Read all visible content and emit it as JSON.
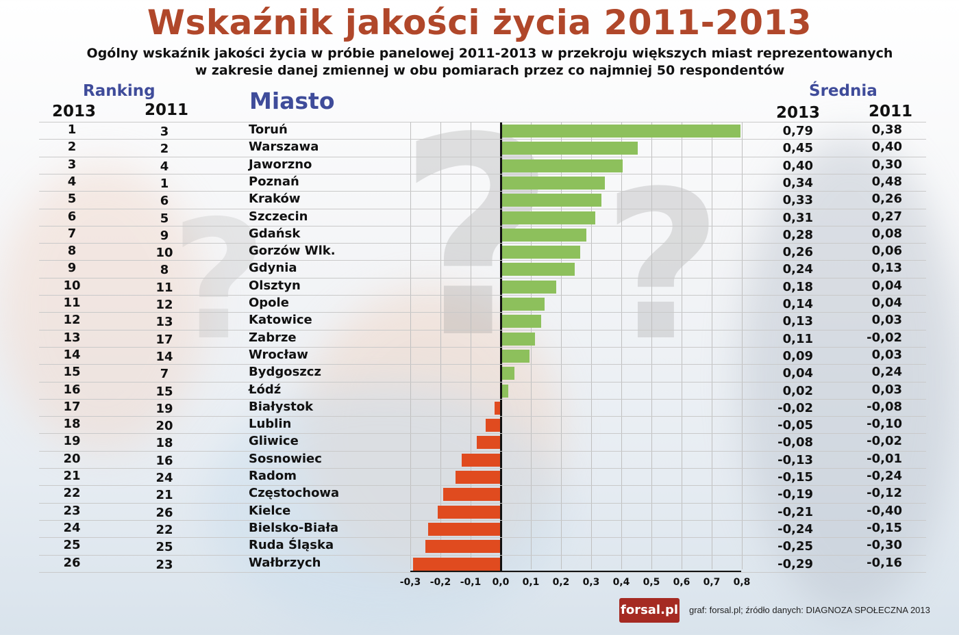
{
  "title": "Wskaźnik jakości życia 2011-2013",
  "subtitle_line1": "Ogólny wskaźnik jakości życia w próbie panelowej 2011-2013 w przekroju większych miast reprezentowanych",
  "subtitle_line2": "w zakresie danej zmiennej w obu pomiarach przez co najmniej 50 respondentów",
  "headers": {
    "ranking": "Ranking",
    "rank_2013": "2013",
    "rank_2011": "2011",
    "city": "Miasto",
    "average": "Średnia",
    "avg_2013": "2013",
    "avg_2011": "2011"
  },
  "colors": {
    "title": "#b0472a",
    "header_blue": "#3f4c9a",
    "positive_bar": "#8dc05c",
    "negative_bar": "#e04b1f",
    "logo_bg": "#a52a22"
  },
  "rows": [
    {
      "rank2013": "1",
      "rank2011": "3",
      "city": "Toruń",
      "avg2013": "0,79",
      "avg2011": "0,38"
    },
    {
      "rank2013": "2",
      "rank2011": "2",
      "city": "Warszawa",
      "avg2013": "0,45",
      "avg2011": "0,40"
    },
    {
      "rank2013": "3",
      "rank2011": "4",
      "city": "Jaworzno",
      "avg2013": "0,40",
      "avg2011": "0,30"
    },
    {
      "rank2013": "4",
      "rank2011": "1",
      "city": "Poznań",
      "avg2013": "0,34",
      "avg2011": "0,48"
    },
    {
      "rank2013": "5",
      "rank2011": "6",
      "city": "Kraków",
      "avg2013": "0,33",
      "avg2011": "0,26"
    },
    {
      "rank2013": "6",
      "rank2011": "5",
      "city": "Szczecin",
      "avg2013": "0,31",
      "avg2011": "0,27"
    },
    {
      "rank2013": "7",
      "rank2011": "9",
      "city": "Gdańsk",
      "avg2013": "0,28",
      "avg2011": "0,08"
    },
    {
      "rank2013": "8",
      "rank2011": "10",
      "city": "Gorzów Wlk.",
      "avg2013": "0,26",
      "avg2011": "0,06"
    },
    {
      "rank2013": "9",
      "rank2011": "8",
      "city": "Gdynia",
      "avg2013": "0,24",
      "avg2011": "0,13"
    },
    {
      "rank2013": "10",
      "rank2011": "11",
      "city": "Olsztyn",
      "avg2013": "0,18",
      "avg2011": "0,04"
    },
    {
      "rank2013": "11",
      "rank2011": "12",
      "city": "Opole",
      "avg2013": "0,14",
      "avg2011": "0,04"
    },
    {
      "rank2013": "12",
      "rank2011": "13",
      "city": "Katowice",
      "avg2013": "0,13",
      "avg2011": "0,03"
    },
    {
      "rank2013": "13",
      "rank2011": "17",
      "city": "Zabrze",
      "avg2013": "0,11",
      "avg2011": "-0,02"
    },
    {
      "rank2013": "14",
      "rank2011": "14",
      "city": "Wrocław",
      "avg2013": "0,09",
      "avg2011": "0,03"
    },
    {
      "rank2013": "15",
      "rank2011": "7",
      "city": "Bydgoszcz",
      "avg2013": "0,04",
      "avg2011": "0,24"
    },
    {
      "rank2013": "16",
      "rank2011": "15",
      "city": "Łódź",
      "avg2013": "0,02",
      "avg2011": "0,03"
    },
    {
      "rank2013": "17",
      "rank2011": "19",
      "city": "Białystok",
      "avg2013": "-0,02",
      "avg2011": "-0,08"
    },
    {
      "rank2013": "18",
      "rank2011": "20",
      "city": "Lublin",
      "avg2013": "-0,05",
      "avg2011": "-0,10"
    },
    {
      "rank2013": "19",
      "rank2011": "18",
      "city": "Gliwice",
      "avg2013": "-0,08",
      "avg2011": "-0,02"
    },
    {
      "rank2013": "20",
      "rank2011": "16",
      "city": "Sosnowiec",
      "avg2013": "-0,13",
      "avg2011": "-0,01"
    },
    {
      "rank2013": "21",
      "rank2011": "24",
      "city": "Radom",
      "avg2013": "-0,15",
      "avg2011": "-0,24"
    },
    {
      "rank2013": "22",
      "rank2011": "21",
      "city": "Częstochowa",
      "avg2013": "-0,19",
      "avg2011": "-0,12"
    },
    {
      "rank2013": "23",
      "rank2011": "26",
      "city": "Kielce",
      "avg2013": "-0,21",
      "avg2011": "-0,40"
    },
    {
      "rank2013": "24",
      "rank2011": "22",
      "city": "Bielsko-Biała",
      "avg2013": "-0,24",
      "avg2011": "-0,15"
    },
    {
      "rank2013": "25",
      "rank2011": "25",
      "city": "Ruda Śląska",
      "avg2013": "-0,25",
      "avg2011": "-0,30"
    },
    {
      "rank2013": "26",
      "rank2011": "23",
      "city": "Wałbrzych",
      "avg2013": "-0,29",
      "avg2011": "-0,16"
    }
  ],
  "axis_ticks": [
    "-0,3",
    "-0,2",
    "-0,1",
    "0,0",
    "0,1",
    "0,2",
    "0,3",
    "0,4",
    "0,5",
    "0,6",
    "0,7",
    "0,8"
  ],
  "footer": {
    "logo_text": "forsal.pl",
    "source_text": "graf: forsal.pl;   źródło danych: DIAGNOZA SPOŁECZNA 2013"
  },
  "chart_data": {
    "type": "bar",
    "orientation": "horizontal",
    "title": "Wskaźnik jakości życia 2011-2013",
    "subtitle": "Ogólny wskaźnik jakości życia w próbie panelowej 2011-2013 w przekroju większych miast reprezentowanych w zakresie danej zmiennej w obu pomiarach przez co najmniej 50 respondentów",
    "xlabel": "",
    "ylabel": "Miasto",
    "xlim": [
      -0.3,
      0.8
    ],
    "x_ticks": [
      -0.3,
      -0.2,
      -0.1,
      0.0,
      0.1,
      0.2,
      0.3,
      0.4,
      0.5,
      0.6,
      0.7,
      0.8
    ],
    "grid": true,
    "legend": null,
    "categories": [
      "Toruń",
      "Warszawa",
      "Jaworzno",
      "Poznań",
      "Kraków",
      "Szczecin",
      "Gdańsk",
      "Gorzów Wlk.",
      "Gdynia",
      "Olsztyn",
      "Opole",
      "Katowice",
      "Zabrze",
      "Wrocław",
      "Bydgoszcz",
      "Łódź",
      "Białystok",
      "Lublin",
      "Gliwice",
      "Sosnowiec",
      "Radom",
      "Częstochowa",
      "Kielce",
      "Bielsko-Biała",
      "Ruda Śląska",
      "Wałbrzych"
    ],
    "series": [
      {
        "name": "Średnia 2013 (bars)",
        "values": [
          0.79,
          0.45,
          0.4,
          0.34,
          0.33,
          0.31,
          0.28,
          0.26,
          0.24,
          0.18,
          0.14,
          0.13,
          0.11,
          0.09,
          0.04,
          0.02,
          -0.02,
          -0.05,
          -0.08,
          -0.13,
          -0.15,
          -0.19,
          -0.21,
          -0.24,
          -0.25,
          -0.29
        ]
      },
      {
        "name": "Średnia 2011 (table)",
        "values": [
          0.38,
          0.4,
          0.3,
          0.48,
          0.26,
          0.27,
          0.08,
          0.06,
          0.13,
          0.04,
          0.04,
          0.03,
          -0.02,
          0.03,
          0.24,
          0.03,
          -0.08,
          -0.1,
          -0.02,
          -0.01,
          -0.24,
          -0.12,
          -0.4,
          -0.15,
          -0.3,
          -0.16
        ]
      }
    ],
    "ranking_2013": [
      1,
      2,
      3,
      4,
      5,
      6,
      7,
      8,
      9,
      10,
      11,
      12,
      13,
      14,
      15,
      16,
      17,
      18,
      19,
      20,
      21,
      22,
      23,
      24,
      25,
      26
    ],
    "ranking_2011": [
      3,
      2,
      4,
      1,
      6,
      5,
      9,
      10,
      8,
      11,
      12,
      13,
      17,
      14,
      7,
      15,
      19,
      20,
      18,
      16,
      24,
      21,
      26,
      22,
      25,
      23
    ],
    "bar_colors": {
      "positive": "#8dc05c",
      "negative": "#e04b1f"
    }
  }
}
